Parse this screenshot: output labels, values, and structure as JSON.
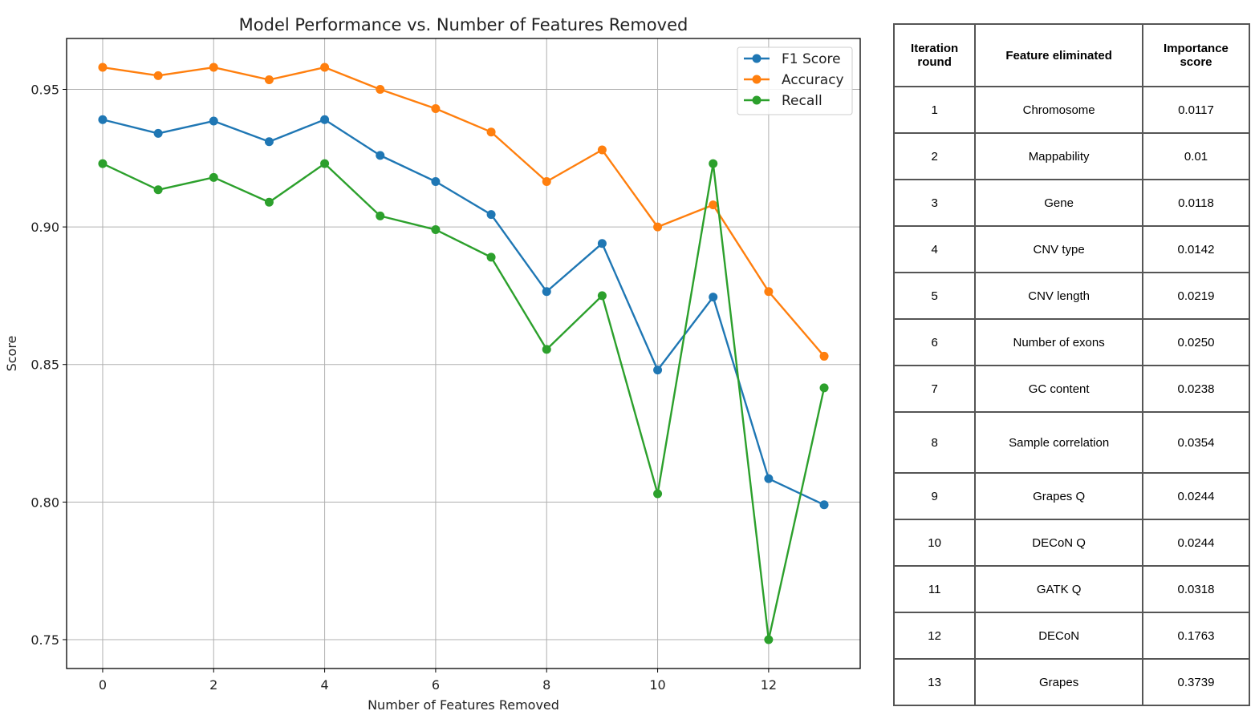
{
  "chart_data": {
    "type": "line",
    "title": "Model Performance vs. Number of Features Removed",
    "xlabel": "Number of Features Removed",
    "ylabel": "Score",
    "x": [
      0,
      1,
      2,
      3,
      4,
      5,
      6,
      7,
      8,
      9,
      10,
      11,
      12,
      13
    ],
    "xlim": [
      -0.65,
      13.65
    ],
    "ylim": [
      0.7395,
      0.9685
    ],
    "xticks": [
      0,
      2,
      4,
      6,
      8,
      10,
      12
    ],
    "yticks": [
      0.75,
      0.8,
      0.85,
      0.9,
      0.95
    ],
    "ytick_labels": [
      "0.75",
      "0.80",
      "0.85",
      "0.90",
      "0.95"
    ],
    "grid": true,
    "legend_position": "top-right",
    "series": [
      {
        "name": "F1 Score",
        "color": "#1f77b4",
        "values": [
          0.939,
          0.934,
          0.9385,
          0.931,
          0.939,
          0.926,
          0.9165,
          0.9045,
          0.8765,
          0.894,
          0.848,
          0.8745,
          0.8085,
          0.799
        ]
      },
      {
        "name": "Accuracy",
        "color": "#ff7f0e",
        "values": [
          0.958,
          0.955,
          0.958,
          0.9535,
          0.958,
          0.95,
          0.943,
          0.9345,
          0.9165,
          0.928,
          0.9,
          0.908,
          0.8765,
          0.853
        ]
      },
      {
        "name": "Recall",
        "color": "#2ca02c",
        "values": [
          0.923,
          0.9135,
          0.918,
          0.909,
          0.923,
          0.904,
          0.899,
          0.889,
          0.8555,
          0.875,
          0.803,
          0.923,
          0.75,
          0.8415
        ]
      }
    ]
  },
  "table": {
    "headers": {
      "round": [
        "Iteration",
        "round"
      ],
      "feature": "Feature eliminated",
      "score": [
        "Importance",
        "score"
      ]
    },
    "rows": [
      {
        "round": "1",
        "feature": "Chromosome",
        "score": "0.0117"
      },
      {
        "round": "2",
        "feature": "Mappability",
        "score": "0.01"
      },
      {
        "round": "3",
        "feature": "Gene",
        "score": "0.0118"
      },
      {
        "round": "4",
        "feature": "CNV type",
        "score": "0.0142"
      },
      {
        "round": "5",
        "feature": "CNV length",
        "score": "0.0219"
      },
      {
        "round": "6",
        "feature": "Number of exons",
        "score": "0.0250"
      },
      {
        "round": "7",
        "feature": "GC content",
        "score": "0.0238"
      },
      {
        "round": "8",
        "feature": "Sample correlation",
        "score": "0.0354"
      },
      {
        "round": "9",
        "feature": "Grapes Q",
        "score": "0.0244"
      },
      {
        "round": "10",
        "feature": "DECoN Q",
        "score": "0.0244"
      },
      {
        "round": "11",
        "feature": "GATK Q",
        "score": "0.0318"
      },
      {
        "round": "12",
        "feature": "DECoN",
        "score": "0.1763"
      },
      {
        "round": "13",
        "feature": "Grapes",
        "score": "0.3739"
      }
    ]
  }
}
